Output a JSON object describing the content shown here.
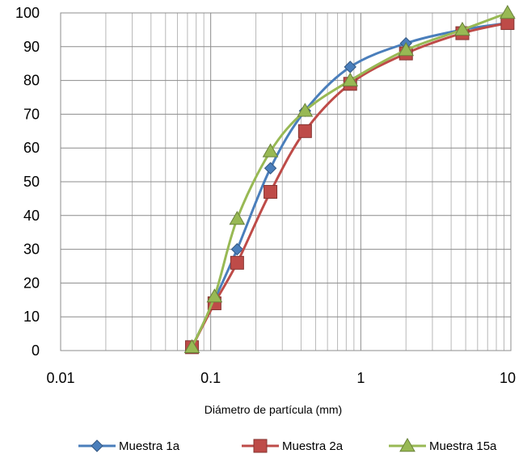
{
  "chart_data": {
    "type": "line",
    "title": "",
    "xlabel": "Diámetro de partícula (mm)",
    "ylabel": "",
    "x_scale": "log",
    "xlim": [
      0.01,
      10
    ],
    "ylim": [
      0,
      100
    ],
    "x_ticks": [
      0.01,
      0.1,
      1,
      10
    ],
    "x_tick_labels": [
      "0.01",
      "0.1",
      "1",
      "10"
    ],
    "y_ticks": [
      0,
      10,
      20,
      30,
      40,
      50,
      60,
      70,
      80,
      90,
      100
    ],
    "y_tick_labels": [
      "0",
      "10",
      "20",
      "30",
      "40",
      "50",
      "60",
      "70",
      "80",
      "90",
      "100"
    ],
    "grid": true,
    "legend_position": "bottom",
    "series": [
      {
        "name": "Muestra 1a",
        "color": "#4a7ebb",
        "marker": "diamond",
        "x": [
          0.075,
          0.106,
          0.15,
          0.25,
          0.425,
          0.85,
          2,
          4.75,
          9.5
        ],
        "y": [
          1,
          15,
          30,
          54,
          71,
          84,
          91,
          95,
          97
        ]
      },
      {
        "name": "Muestra 2a",
        "color": "#be4b48",
        "marker": "square",
        "x": [
          0.075,
          0.106,
          0.15,
          0.25,
          0.425,
          0.85,
          2,
          4.75,
          9.5
        ],
        "y": [
          1,
          14,
          26,
          47,
          65,
          79,
          88,
          94,
          97
        ]
      },
      {
        "name": "Muestra 15a",
        "color": "#98b954",
        "marker": "triangle",
        "x": [
          0.075,
          0.106,
          0.15,
          0.25,
          0.425,
          0.85,
          2,
          4.75,
          9.5
        ],
        "y": [
          1,
          16,
          39,
          59,
          71,
          80,
          89,
          95,
          100
        ]
      }
    ]
  }
}
